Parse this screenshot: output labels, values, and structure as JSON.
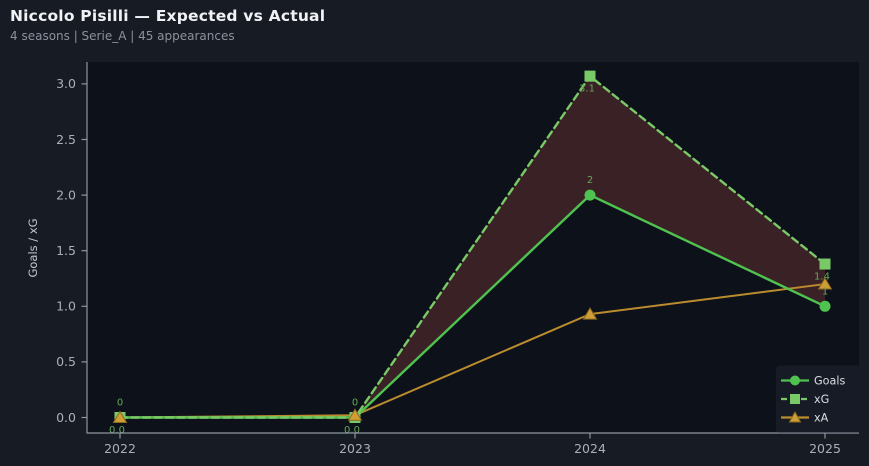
{
  "header": {
    "title": "Niccolo Pisilli — Expected vs Actual",
    "subtitle": "4 seasons | Serie_A | 45 appearances"
  },
  "chart_data": {
    "type": "line",
    "title": "Niccolo Pisilli — Expected vs Actual",
    "x_categories": [
      "2022",
      "2023",
      "2024",
      "2025"
    ],
    "xlabel": "",
    "ylabel": "Goals / xG",
    "yticks": [
      0.0,
      0.5,
      1.0,
      1.5,
      2.0,
      2.5,
      3.0
    ],
    "ylim": [
      -0.14,
      3.17
    ],
    "grid": false,
    "legend_position": "lower right",
    "series": [
      {
        "name": "Goals",
        "marker": "circle",
        "line_style": "solid",
        "color": "#4fc34f",
        "values": [
          0,
          0,
          2,
          1
        ],
        "point_labels": [
          "0",
          "0",
          "2",
          "1"
        ],
        "label_side": "above"
      },
      {
        "name": "xG",
        "marker": "square",
        "line_style": "dashed",
        "color": "#79ca67",
        "values": [
          0,
          0,
          3.07,
          1.38
        ],
        "point_labels": [
          "0.0",
          "0.0",
          "3.1",
          "1.4"
        ],
        "label_side": "below"
      },
      {
        "name": "xA",
        "marker": "triangle",
        "line_style": "solid",
        "color": "#bb8c2e",
        "marker_fill": "#cf9d35",
        "marker_edge": "#8a691f",
        "values": [
          0,
          0.02,
          0.93,
          1.2
        ],
        "point_labels": [],
        "label_side": "none"
      }
    ],
    "fill_between": {
      "series_upper": "xG",
      "series_lower": "Goals",
      "color": "#3a2126"
    }
  },
  "colors": {
    "page_bg": "#171b24",
    "plot_bg": "#0d111a",
    "title": "#f0f2f5",
    "subtitle": "#8b929c",
    "axis": "#8f96a1",
    "tick_label": "#a9afba",
    "axis_label": "#c2c7cf",
    "point_label": "#65a758",
    "legend_bg": "#161b25",
    "legend_text": "#d9dce1"
  }
}
